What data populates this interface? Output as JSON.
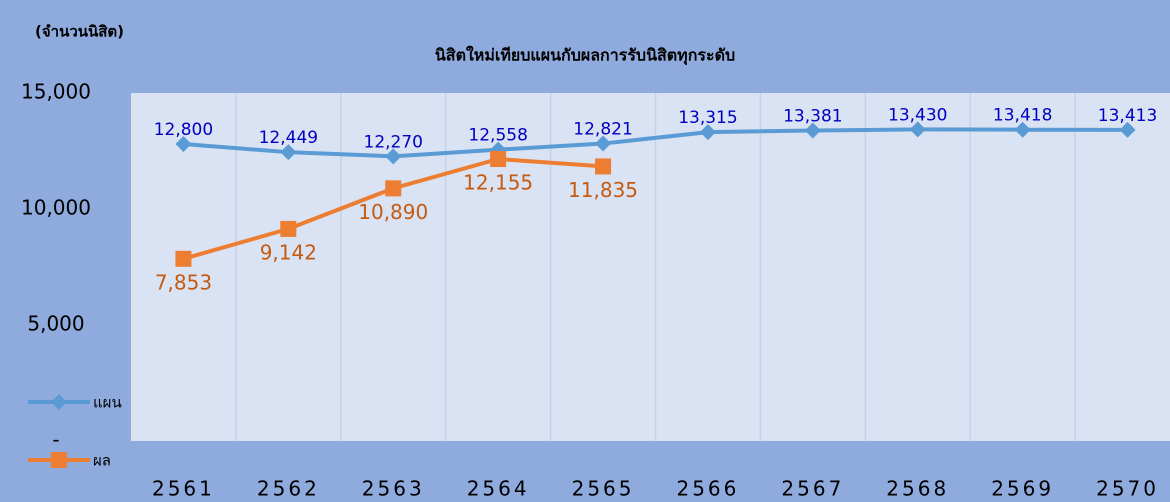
{
  "chart_data": {
    "type": "line",
    "title": "นิสิตใหม่เทียบแผนกับผลการรับนิสิตทุกระดับ",
    "y_label": "(จำนวนนิสิต)",
    "categories": [
      "2561",
      "2562",
      "2563",
      "2564",
      "2565",
      "2566",
      "2567",
      "2568",
      "2569",
      "2570"
    ],
    "series": [
      {
        "name": "แผน",
        "color": "#5b9bd5",
        "label_color": "#0000c0",
        "values": [
          12800,
          12449,
          12270,
          12558,
          12821,
          13315,
          13381,
          13430,
          13418,
          13413
        ],
        "value_labels": [
          "12,800",
          "12,449",
          "12,270",
          "12,558",
          "12,821",
          "13,315",
          "13,381",
          "13,430",
          "13,418",
          "13,413"
        ]
      },
      {
        "name": "ผล",
        "color": "#ed7d31",
        "label_color": "#c55a11",
        "values": [
          7853,
          9142,
          10890,
          12155,
          11835,
          null,
          null,
          null,
          null,
          null
        ],
        "value_labels": [
          "7,853",
          "9,142",
          "10,890",
          "12,155",
          "11,835",
          null,
          null,
          null,
          null,
          null
        ]
      }
    ],
    "ylim": [
      0,
      15000
    ],
    "yticks": [
      {
        "value": 0,
        "label": "-"
      },
      {
        "value": 5000,
        "label": "5,000"
      },
      {
        "value": 10000,
        "label": "10,000"
      },
      {
        "value": 15000,
        "label": "15,000"
      }
    ],
    "grid": true
  }
}
